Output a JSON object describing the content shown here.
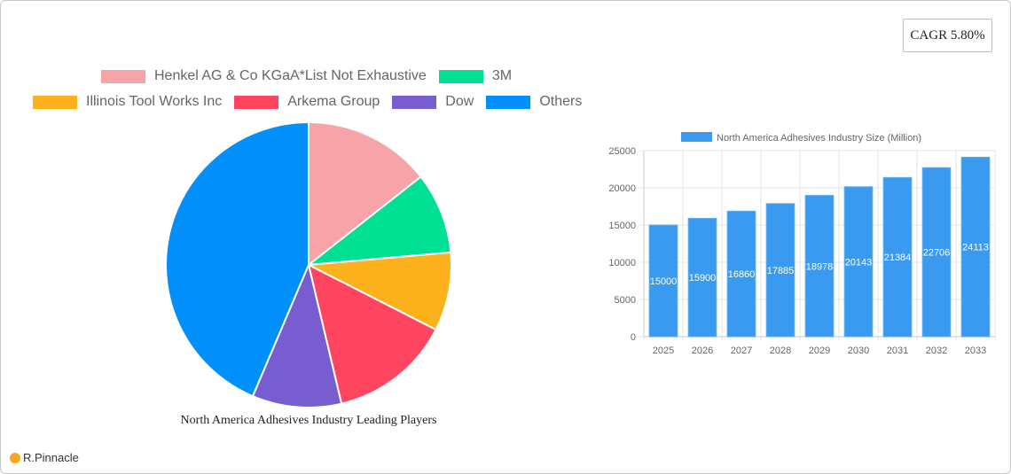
{
  "badge": {
    "cagr_label": "CAGR 5.80%"
  },
  "pie": {
    "title": "North America Adhesives Industry Leading Players",
    "legend_row1": [
      {
        "label": "Henkel AG & Co  KGaA*List Not Exhaustive",
        "color": "#f7a3a7"
      },
      {
        "label": "3M",
        "color": "#00e093"
      }
    ],
    "legend_row2": [
      {
        "label": "Illinois Tool Works Inc",
        "color": "#fdb11d"
      },
      {
        "label": "Arkema Group",
        "color": "#ff4560"
      },
      {
        "label": "Dow",
        "color": "#775dd0"
      },
      {
        "label": "Others",
        "color": "#008ffb"
      }
    ]
  },
  "bar": {
    "legend_label": "North America Adhesives Industry Size (Million)",
    "color": "#3a9af0"
  },
  "logo": {
    "text": "R.Pinnacle"
  },
  "chart_data": [
    {
      "type": "pie",
      "title": "North America Adhesives Industry Leading Players",
      "categories": [
        "Henkel AG & Co  KGaA*List Not Exhaustive",
        "3M",
        "Illinois Tool Works Inc",
        "Arkema Group",
        "Dow",
        "Others"
      ],
      "values": [
        14.4,
        9.2,
        8.9,
        13.8,
        10.1,
        43.6
      ],
      "colors": [
        "#f7a3a7",
        "#00e093",
        "#fdb11d",
        "#ff4560",
        "#775dd0",
        "#008ffb"
      ],
      "legend_position": "top"
    },
    {
      "type": "bar",
      "title": "",
      "categories": [
        "2025",
        "2026",
        "2027",
        "2028",
        "2029",
        "2030",
        "2031",
        "2032",
        "2033"
      ],
      "series": [
        {
          "name": "North America Adhesives Industry Size (Million)",
          "values": [
            15000,
            15900,
            16860,
            17885,
            18978,
            20143,
            21384,
            22706,
            24113
          ]
        }
      ],
      "xlabel": "",
      "ylabel": "",
      "ylim": [
        0,
        25000
      ],
      "yticks": [
        0,
        5000,
        10000,
        15000,
        20000,
        25000
      ],
      "grid": true,
      "data_labels": true,
      "legend_position": "top",
      "annotation": "CAGR 5.80%"
    }
  ]
}
